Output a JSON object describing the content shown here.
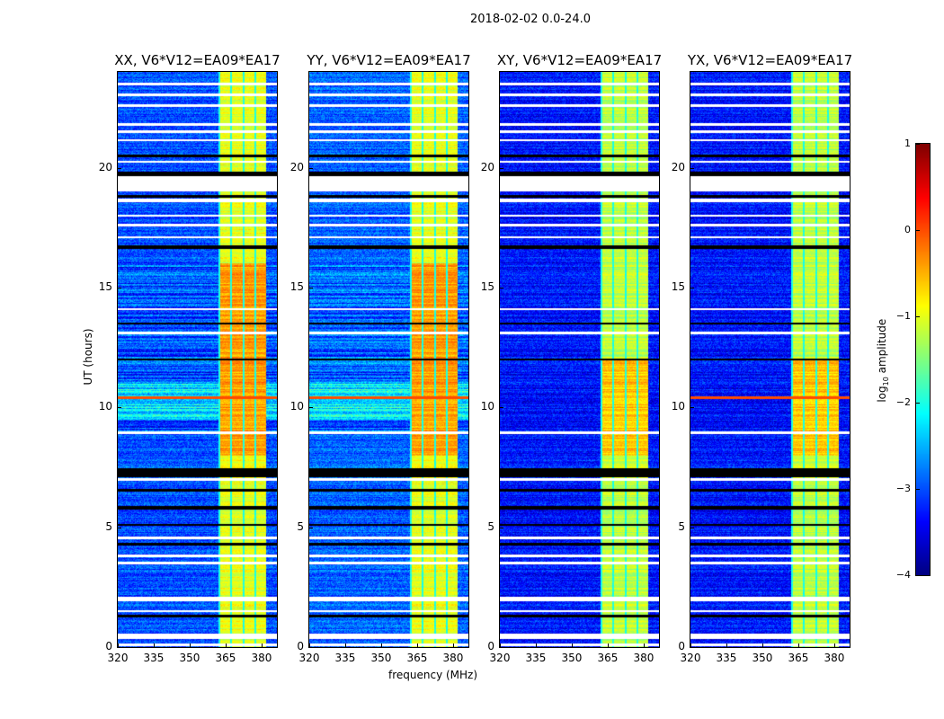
{
  "chart_data": {
    "type": "heatmap",
    "title": "2018-02-02 0.0-24.0",
    "xlabel": "frequency (MHz)",
    "ylabel": "UT (hours)",
    "xlim": [
      320,
      386.4
    ],
    "ylim": [
      0,
      24
    ],
    "xticks": [
      320,
      335,
      350,
      365,
      380
    ],
    "yticks": [
      0,
      5,
      10,
      15,
      20
    ],
    "colormap": "jet",
    "colorbar": {
      "label_prefix": "log",
      "label_sub": "10",
      "label_suffix": " amplitude",
      "range": [
        -4,
        1
      ],
      "ticks": [
        1,
        0,
        -1,
        -2,
        -3,
        -4
      ]
    },
    "panels": [
      {
        "title": "XX, V6*V12=EA09*EA17",
        "background_level": -3.0,
        "band_level": -1.0,
        "strong_hours": [
          8,
          16
        ],
        "strong_level": -0.4
      },
      {
        "title": "YY, V6*V12=EA09*EA17",
        "background_level": -2.9,
        "band_level": -1.0,
        "strong_hours": [
          8,
          16
        ],
        "strong_level": -0.4
      },
      {
        "title": "XY, V6*V12=EA09*EA17",
        "background_level": -3.3,
        "band_level": -1.2,
        "strong_hours": [
          8,
          12
        ],
        "strong_level": -0.6
      },
      {
        "title": "YX, V6*V12=EA09*EA17",
        "background_level": -3.3,
        "band_level": -1.2,
        "strong_hours": [
          8,
          12
        ],
        "strong_level": -0.6
      }
    ],
    "rfi_band_mhz": [
      362,
      382
    ],
    "flagged_hours_white": [
      [
        0.05,
        0.15
      ],
      [
        0.35,
        0.55
      ],
      [
        1.45,
        1.55
      ],
      [
        1.9,
        2.1
      ],
      [
        3.45,
        3.55
      ],
      [
        3.75,
        3.85
      ],
      [
        4.5,
        4.6
      ],
      [
        6.95,
        7.05
      ],
      [
        8.9,
        9.0
      ],
      [
        13.05,
        13.15
      ],
      [
        14.05,
        14.15
      ],
      [
        17.05,
        17.15
      ],
      [
        17.55,
        17.65
      ],
      [
        17.95,
        18.05
      ],
      [
        18.55,
        18.7
      ],
      [
        19.0,
        19.65
      ],
      [
        20.2,
        20.3
      ],
      [
        21.1,
        21.2
      ],
      [
        21.45,
        21.55
      ],
      [
        21.75,
        21.85
      ],
      [
        22.55,
        22.65
      ],
      [
        23.0,
        23.1
      ],
      [
        23.45,
        23.55
      ]
    ],
    "flagged_hours_black": [
      [
        1.25,
        1.35
      ],
      [
        4.25,
        4.35
      ],
      [
        5.05,
        5.15
      ],
      [
        5.75,
        5.9
      ],
      [
        6.5,
        6.6
      ],
      [
        7.1,
        7.45
      ],
      [
        11.95,
        12.05
      ],
      [
        13.45,
        13.55
      ],
      [
        16.6,
        16.75
      ],
      [
        18.75,
        18.85
      ],
      [
        19.65,
        19.85
      ],
      [
        20.45,
        20.55
      ]
    ]
  }
}
